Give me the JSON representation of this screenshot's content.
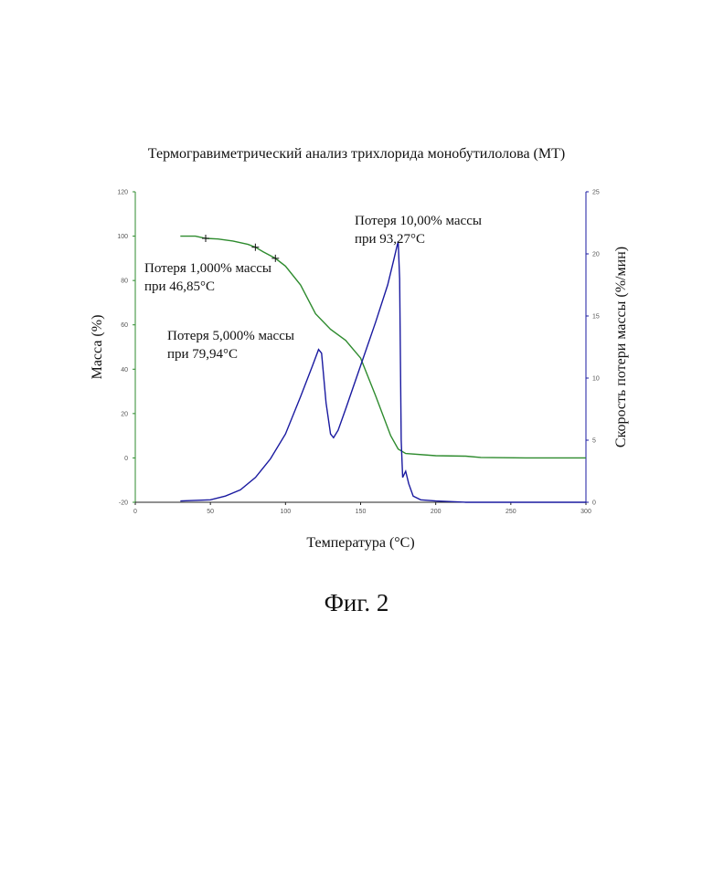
{
  "figure": {
    "caption": "Фиг. 2"
  },
  "chart_data": {
    "type": "line",
    "title": "Термогравиметрический анализ трихлорида монобутилолова (МТ)",
    "xlabel": "Температура (°C)",
    "ylabel_left": "Масса (%)",
    "ylabel_right": "Скорость потери массы (%/мин)",
    "xlim": [
      0,
      300
    ],
    "ylim_left": [
      -20,
      120
    ],
    "ylim_right": [
      0,
      25
    ],
    "x_ticks": [
      "0",
      "50",
      "100",
      "150",
      "200",
      "250",
      "300"
    ],
    "y_left_ticks": [
      "-20",
      "0",
      "20",
      "40",
      "60",
      "80",
      "100",
      "120"
    ],
    "y_right_ticks": [
      "0",
      "5",
      "10",
      "15",
      "20",
      "25"
    ],
    "colors": {
      "mass": "#2e8b2e",
      "rate": "#1a1aa0",
      "axis_left": "#2e8b2e",
      "axis_right": "#1a1aa0"
    },
    "series": [
      {
        "axis": "left",
        "points": [
          [
            30,
            100
          ],
          [
            40,
            100
          ],
          [
            46.85,
            99
          ],
          [
            55,
            98.7
          ],
          [
            65,
            97.8
          ],
          [
            75,
            96.3
          ],
          [
            79.94,
            95
          ],
          [
            85,
            93
          ],
          [
            93.27,
            90
          ],
          [
            100,
            86.5
          ],
          [
            110,
            78
          ],
          [
            120,
            65
          ],
          [
            130,
            58
          ],
          [
            140,
            53
          ],
          [
            150,
            45
          ],
          [
            160,
            28
          ],
          [
            170,
            10
          ],
          [
            175,
            4
          ],
          [
            180,
            2
          ],
          [
            200,
            1
          ],
          [
            220,
            0.8
          ],
          [
            230,
            0.2
          ],
          [
            260,
            0
          ],
          [
            300,
            0
          ]
        ]
      },
      {
        "axis": "right",
        "points": [
          [
            30,
            0.1
          ],
          [
            50,
            0.2
          ],
          [
            60,
            0.5
          ],
          [
            70,
            1
          ],
          [
            80,
            2
          ],
          [
            90,
            3.5
          ],
          [
            100,
            5.5
          ],
          [
            110,
            8.5
          ],
          [
            118,
            11
          ],
          [
            122,
            12.3
          ],
          [
            124,
            12
          ],
          [
            127,
            8
          ],
          [
            130,
            5.5
          ],
          [
            132,
            5.2
          ],
          [
            135,
            5.8
          ],
          [
            140,
            7.5
          ],
          [
            150,
            11
          ],
          [
            160,
            14.5
          ],
          [
            168,
            17.5
          ],
          [
            172,
            19.5
          ],
          [
            174,
            20.5
          ],
          [
            175,
            21
          ],
          [
            176,
            18
          ],
          [
            177,
            5
          ],
          [
            178,
            2
          ],
          [
            180,
            2.5
          ],
          [
            182,
            1.5
          ],
          [
            185,
            0.5
          ],
          [
            190,
            0.2
          ],
          [
            200,
            0.1
          ],
          [
            220,
            0
          ],
          [
            300,
            0
          ]
        ]
      }
    ],
    "annotations": [
      {
        "lines": [
          "Потеря 1,000% массы",
          "при 46,85°C"
        ],
        "x": 46.85,
        "y": 99
      },
      {
        "lines": [
          "Потеря 5,000% массы",
          "при 79,94°C"
        ],
        "x": 79.94,
        "y": 95
      },
      {
        "lines": [
          "Потеря 10,00% массы",
          "при 93,27°C"
        ],
        "x": 93.27,
        "y": 90
      }
    ]
  }
}
